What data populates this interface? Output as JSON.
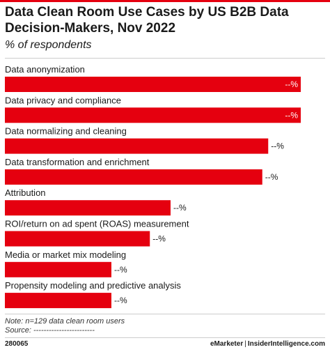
{
  "header": {
    "title": "Data Clean Room Use Cases by US B2B Data Decision-Makers, Nov 2022",
    "subtitle": "% of respondents"
  },
  "chart_data": {
    "type": "bar",
    "orientation": "horizontal",
    "title": "Data Clean Room Use Cases by US B2B Data Decision-Makers, Nov 2022",
    "subtitle": "% of respondents",
    "categories": [
      "Data anonymization",
      "Data privacy and compliance",
      "Data normalizing and cleaning",
      "Data transformation and enrichment",
      "Attribution",
      "ROI/return on ad spent (ROAS) measurement",
      "Media or market mix modeling",
      "Propensity modeling and predictive analysis"
    ],
    "values": [
      100,
      100,
      89,
      87,
      56,
      49,
      36,
      36
    ],
    "value_labels": [
      "--%",
      "--%",
      "--%",
      "--%",
      "--%",
      "--%",
      "--%",
      "--%"
    ],
    "value_scale": "relative (0-100, actual values hidden)",
    "bar_color": "#e5000f",
    "grid": false,
    "legend": "none"
  },
  "footnotes": {
    "note": "Note: n=129 data clean room users",
    "source": "Source: ------------------------"
  },
  "footer": {
    "chart_id": "280065",
    "brand_left": "eMarketer",
    "brand_sep": "|",
    "brand_right": "InsiderIntelligence.com"
  }
}
